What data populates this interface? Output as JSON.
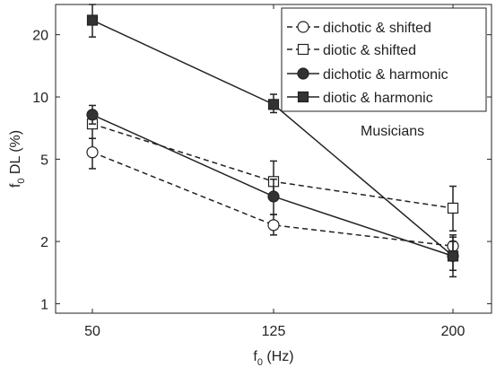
{
  "chart_data": {
    "type": "line",
    "xlabel": "f",
    "xlabel_sub": "0",
    "xlabel_rest": " (Hz)",
    "ylabel": "f",
    "ylabel_sub": "0",
    "ylabel_rest": " DL (%)",
    "x_axis": {
      "categories": [
        "50",
        "125",
        "200"
      ]
    },
    "y_axis": {
      "scale": "log",
      "ylim": [
        0.9,
        28
      ],
      "ticks": [
        1,
        2,
        5,
        10,
        20
      ],
      "tick_labels": [
        "1",
        "2",
        "5",
        "10",
        "20"
      ]
    },
    "grid": false,
    "legend_position": "top-right",
    "annotation": "Musicians",
    "series": [
      {
        "name": "dichotic & shifted",
        "marker": "circle-open",
        "line": "dashed",
        "values": [
          5.4,
          2.4,
          1.9
        ],
        "err_low": [
          4.5,
          2.15,
          1.7
        ],
        "err_high": [
          6.3,
          2.7,
          2.15
        ]
      },
      {
        "name": "diotic & shifted",
        "marker": "square-open",
        "line": "dashed",
        "values": [
          7.4,
          3.9,
          2.9
        ],
        "err_low": [
          6.3,
          3.3,
          2.25
        ],
        "err_high": [
          8.5,
          4.9,
          3.7
        ]
      },
      {
        "name": "dichotic & harmonic",
        "marker": "circle-filled",
        "line": "solid",
        "values": [
          8.2,
          3.3,
          1.7
        ],
        "err_low": [
          7.4,
          2.7,
          1.35
        ],
        "err_high": [
          9.1,
          4.0,
          2.1
        ]
      },
      {
        "name": "diotic & harmonic",
        "marker": "square-filled",
        "line": "solid",
        "values": [
          23.5,
          9.2,
          1.7
        ],
        "err_low": [
          19.5,
          8.4,
          1.45
        ],
        "err_high": [
          28,
          10.3,
          2.0
        ]
      }
    ]
  }
}
